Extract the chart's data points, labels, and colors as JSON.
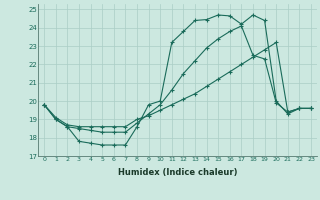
{
  "xlabel": "Humidex (Indice chaleur)",
  "background_color": "#cce8e0",
  "grid_color": "#aacec6",
  "line_color": "#1a6b5a",
  "xlim": [
    -0.5,
    23.5
  ],
  "ylim": [
    17,
    25.3
  ],
  "xticks": [
    0,
    1,
    2,
    3,
    4,
    5,
    6,
    7,
    8,
    9,
    10,
    11,
    12,
    13,
    14,
    15,
    16,
    17,
    18,
    19,
    20,
    21,
    22,
    23
  ],
  "yticks": [
    17,
    18,
    19,
    20,
    21,
    22,
    23,
    24,
    25
  ],
  "line1_x": [
    0,
    1,
    2,
    3,
    4,
    5,
    6,
    7,
    8,
    9,
    10,
    11,
    12,
    13,
    14,
    15,
    16,
    17,
    18,
    19,
    20,
    21,
    22,
    23
  ],
  "line1_y": [
    19.8,
    19.0,
    18.6,
    17.8,
    17.7,
    17.6,
    17.6,
    17.6,
    18.6,
    19.8,
    20.0,
    23.2,
    23.8,
    24.4,
    24.45,
    24.7,
    24.65,
    24.2,
    24.7,
    24.4,
    20.0,
    19.3,
    19.6,
    19.6
  ],
  "line2_x": [
    0,
    1,
    2,
    3,
    4,
    5,
    6,
    7,
    8,
    9,
    10,
    11,
    12,
    13,
    14,
    15,
    16,
    17,
    18,
    19,
    20,
    21,
    22,
    23
  ],
  "line2_y": [
    19.8,
    19.0,
    18.6,
    18.5,
    18.4,
    18.3,
    18.3,
    18.3,
    18.8,
    19.3,
    19.8,
    20.6,
    21.5,
    22.2,
    22.9,
    23.4,
    23.8,
    24.1,
    22.5,
    22.3,
    19.9,
    19.4,
    19.6,
    19.6
  ],
  "line3_x": [
    0,
    1,
    2,
    3,
    4,
    5,
    6,
    7,
    8,
    9,
    10,
    11,
    12,
    13,
    14,
    15,
    16,
    17,
    18,
    19,
    20,
    21,
    22,
    23
  ],
  "line3_y": [
    19.8,
    19.1,
    18.7,
    18.6,
    18.6,
    18.6,
    18.6,
    18.6,
    19.0,
    19.2,
    19.5,
    19.8,
    20.1,
    20.4,
    20.8,
    21.2,
    21.6,
    22.0,
    22.4,
    22.8,
    23.2,
    19.4,
    19.6,
    19.6
  ]
}
